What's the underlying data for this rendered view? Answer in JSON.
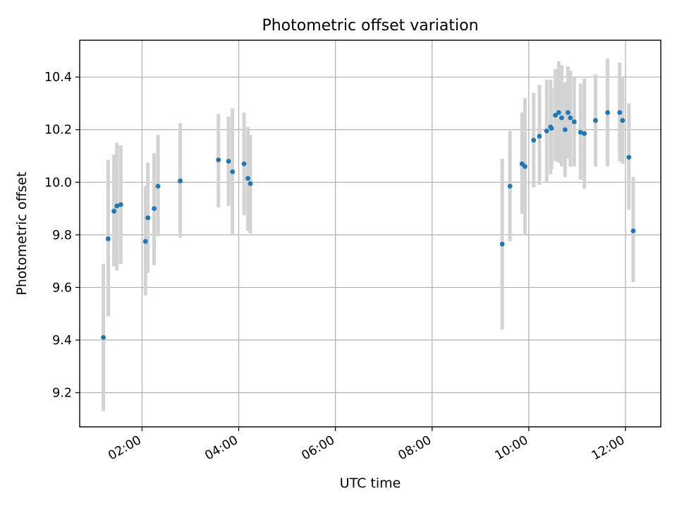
{
  "chart_data": {
    "type": "scatter",
    "title": "Photometric offset variation",
    "xlabel": "UTC time",
    "ylabel": "Photometric offset",
    "x_unit": "hours",
    "xlim": [
      0.71,
      12.73
    ],
    "ylim": [
      9.07,
      10.54
    ],
    "x_ticks": [
      {
        "value": 2,
        "label": "02:00"
      },
      {
        "value": 4,
        "label": "04:00"
      },
      {
        "value": 6,
        "label": "06:00"
      },
      {
        "value": 8,
        "label": "08:00"
      },
      {
        "value": 10,
        "label": "10:00"
      },
      {
        "value": 12,
        "label": "12:00"
      }
    ],
    "y_ticks": [
      {
        "value": 9.2,
        "label": "9.2"
      },
      {
        "value": 9.4,
        "label": "9.4"
      },
      {
        "value": 9.6,
        "label": "9.6"
      },
      {
        "value": 9.8,
        "label": "9.8"
      },
      {
        "value": 10.0,
        "label": "10.0"
      },
      {
        "value": 10.2,
        "label": "10.2"
      },
      {
        "value": 10.4,
        "label": "10.4"
      }
    ],
    "grid": true,
    "marker_color": "#1f77b4",
    "errorbar_color": "#d3d3d3",
    "points": [
      {
        "time": "01:12",
        "x": 1.2,
        "y": 9.41,
        "err_low": 9.13,
        "err_high": 9.69
      },
      {
        "time": "01:18",
        "x": 1.3,
        "y": 9.785,
        "err_low": 9.49,
        "err_high": 10.085
      },
      {
        "time": "01:25",
        "x": 1.42,
        "y": 9.89,
        "err_low": 9.68,
        "err_high": 10.105
      },
      {
        "time": "01:29",
        "x": 1.48,
        "y": 9.91,
        "err_low": 9.665,
        "err_high": 10.15
      },
      {
        "time": "01:34",
        "x": 1.56,
        "y": 9.915,
        "err_low": 9.69,
        "err_high": 10.14
      },
      {
        "time": "02:04",
        "x": 2.07,
        "y": 9.775,
        "err_low": 9.57,
        "err_high": 9.985
      },
      {
        "time": "02:07",
        "x": 2.12,
        "y": 9.865,
        "err_low": 9.655,
        "err_high": 10.075
      },
      {
        "time": "02:15",
        "x": 2.25,
        "y": 9.9,
        "err_low": 9.685,
        "err_high": 10.11
      },
      {
        "time": "02:20",
        "x": 2.33,
        "y": 9.985,
        "err_low": 9.795,
        "err_high": 10.18
      },
      {
        "time": "02:47",
        "x": 2.79,
        "y": 10.005,
        "err_low": 9.79,
        "err_high": 10.225
      },
      {
        "time": "03:35",
        "x": 3.58,
        "y": 10.085,
        "err_low": 9.905,
        "err_high": 10.26
      },
      {
        "time": "03:47",
        "x": 3.79,
        "y": 10.08,
        "err_low": 9.91,
        "err_high": 10.25
      },
      {
        "time": "03:52",
        "x": 3.87,
        "y": 10.04,
        "err_low": 9.8,
        "err_high": 10.28
      },
      {
        "time": "04:07",
        "x": 4.11,
        "y": 10.07,
        "err_low": 9.875,
        "err_high": 10.265
      },
      {
        "time": "04:11",
        "x": 4.19,
        "y": 10.015,
        "err_low": 9.815,
        "err_high": 10.21
      },
      {
        "time": "04:15",
        "x": 4.24,
        "y": 9.995,
        "err_low": 9.805,
        "err_high": 10.18
      },
      {
        "time": "09:27",
        "x": 9.45,
        "y": 9.765,
        "err_low": 9.44,
        "err_high": 10.09
      },
      {
        "time": "09:36",
        "x": 9.61,
        "y": 9.985,
        "err_low": 9.775,
        "err_high": 10.195
      },
      {
        "time": "09:52",
        "x": 9.86,
        "y": 10.07,
        "err_low": 9.88,
        "err_high": 10.265
      },
      {
        "time": "09:55",
        "x": 9.92,
        "y": 10.06,
        "err_low": 9.8,
        "err_high": 10.32
      },
      {
        "time": "10:06",
        "x": 10.1,
        "y": 10.16,
        "err_low": 9.98,
        "err_high": 10.34
      },
      {
        "time": "10:13",
        "x": 10.22,
        "y": 10.175,
        "err_low": 9.99,
        "err_high": 10.37
      },
      {
        "time": "10:22",
        "x": 10.37,
        "y": 10.195,
        "err_low": 10.0,
        "err_high": 10.39
      },
      {
        "time": "10:27",
        "x": 10.45,
        "y": 10.21,
        "err_low": 10.03,
        "err_high": 10.39
      },
      {
        "time": "10:28",
        "x": 10.47,
        "y": 10.205,
        "err_low": 10.05,
        "err_high": 10.36
      },
      {
        "time": "10:33",
        "x": 10.55,
        "y": 10.255,
        "err_low": 10.08,
        "err_high": 10.43
      },
      {
        "time": "10:37",
        "x": 10.62,
        "y": 10.265,
        "err_low": 10.075,
        "err_high": 10.46
      },
      {
        "time": "10:41",
        "x": 10.68,
        "y": 10.245,
        "err_low": 10.06,
        "err_high": 10.445
      },
      {
        "time": "10:45",
        "x": 10.75,
        "y": 10.2,
        "err_low": 10.02,
        "err_high": 10.38
      },
      {
        "time": "10:48",
        "x": 10.81,
        "y": 10.265,
        "err_low": 10.09,
        "err_high": 10.44
      },
      {
        "time": "10:51",
        "x": 10.86,
        "y": 10.245,
        "err_low": 10.06,
        "err_high": 10.425
      },
      {
        "time": "10:56",
        "x": 10.94,
        "y": 10.23,
        "err_low": 10.06,
        "err_high": 10.4
      },
      {
        "time": "11:04",
        "x": 11.07,
        "y": 10.19,
        "err_low": 10.01,
        "err_high": 10.375
      },
      {
        "time": "11:09",
        "x": 11.15,
        "y": 10.185,
        "err_low": 9.975,
        "err_high": 10.395
      },
      {
        "time": "11:23",
        "x": 11.38,
        "y": 10.235,
        "err_low": 10.06,
        "err_high": 10.41
      },
      {
        "time": "11:38",
        "x": 11.63,
        "y": 10.265,
        "err_low": 10.06,
        "err_high": 10.47
      },
      {
        "time": "11:53",
        "x": 11.88,
        "y": 10.265,
        "err_low": 10.08,
        "err_high": 10.455
      },
      {
        "time": "11:56",
        "x": 11.94,
        "y": 10.235,
        "err_low": 10.07,
        "err_high": 10.4
      },
      {
        "time": "12:04",
        "x": 12.07,
        "y": 10.095,
        "err_low": 9.895,
        "err_high": 10.3
      },
      {
        "time": "12:10",
        "x": 12.16,
        "y": 9.815,
        "err_low": 9.62,
        "err_high": 10.02
      }
    ]
  }
}
